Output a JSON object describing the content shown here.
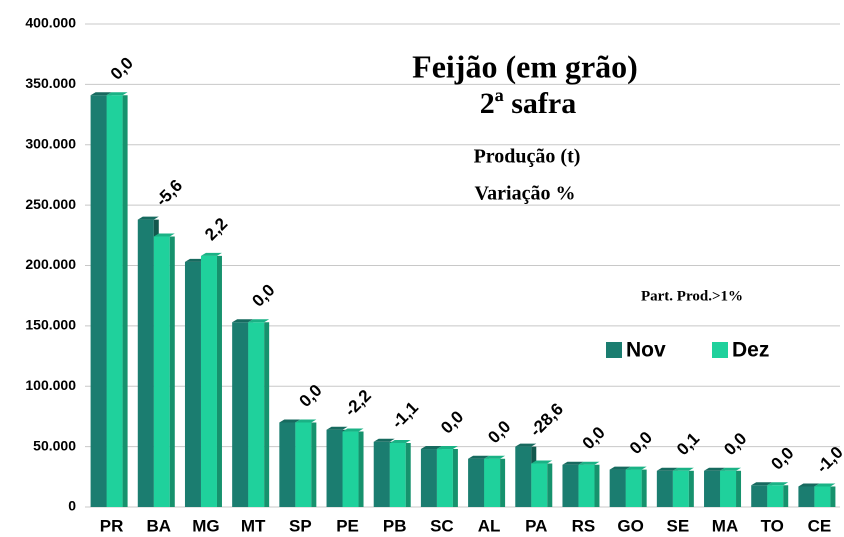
{
  "chart_data": {
    "type": "bar",
    "title": "Feijão (em grão)",
    "subtitle": "2ª safra",
    "annotations": [
      "Produção (t)",
      "Variação %",
      "Part. Prod.>1%"
    ],
    "categories": [
      "PR",
      "BA",
      "MG",
      "MT",
      "SP",
      "PE",
      "PB",
      "SC",
      "AL",
      "PA",
      "RS",
      "GO",
      "SE",
      "MA",
      "TO",
      "CE"
    ],
    "series": [
      {
        "name": "Nov",
        "color": "#1b7d70",
        "values": [
          341000,
          238000,
          203000,
          153000,
          70000,
          64000,
          54000,
          48000,
          40000,
          50000,
          35000,
          31000,
          30000,
          30000,
          18000,
          17000
        ]
      },
      {
        "name": "Dez",
        "color": "#1fd19c",
        "values": [
          341000,
          224000,
          208000,
          153000,
          70000,
          62500,
          53000,
          48000,
          40000,
          36000,
          35000,
          31000,
          30000,
          30000,
          18000,
          17000
        ]
      }
    ],
    "variation": {
      "values": [
        0,
        -5.6,
        2.2,
        0,
        0,
        -2.2,
        -1.1,
        0,
        0,
        -28.6,
        0,
        0,
        0.1,
        0,
        0,
        -1
      ],
      "value_labels": [
        "0,0",
        "-5,6",
        "2,2",
        "0,0",
        "0,0",
        "-2,2",
        "-1,1",
        "0,0",
        "0,0",
        "-28,6",
        "0,0",
        "0,0",
        "0,1",
        "0,0",
        "0,0",
        "-1,0"
      ]
    },
    "ylim": [
      0,
      400000
    ],
    "yticks": [
      0,
      {
        "value": 50000,
        "label": "50.000"
      },
      {
        "value": 100000,
        "label": "100.000"
      },
      {
        "value": 150000,
        "label": "150.000"
      },
      {
        "value": 200000,
        "label": "200.000"
      },
      {
        "value": 250000,
        "label": "250.000"
      },
      {
        "value": 300000,
        "label": "300.000"
      },
      {
        "value": 350000,
        "label": "350.000"
      },
      {
        "value": 400000,
        "label": "400.000"
      }
    ],
    "grid": true,
    "legend": "right"
  }
}
